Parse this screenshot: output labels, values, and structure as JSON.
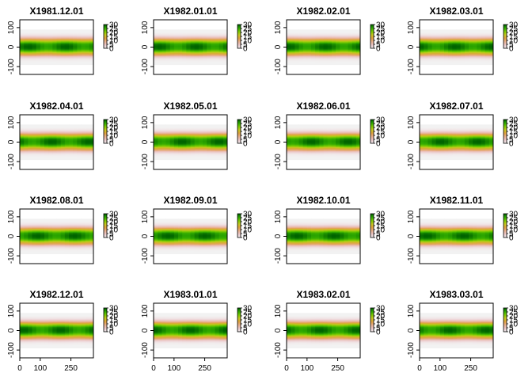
{
  "chart_data": {
    "type": "heatmap",
    "layout": {
      "rows": 4,
      "cols": 4
    },
    "panels": [
      {
        "title": "X1981.12.01"
      },
      {
        "title": "X1982.01.01"
      },
      {
        "title": "X1982.02.01"
      },
      {
        "title": "X1982.03.01"
      },
      {
        "title": "X1982.04.01"
      },
      {
        "title": "X1982.05.01"
      },
      {
        "title": "X1982.06.01"
      },
      {
        "title": "X1982.07.01"
      },
      {
        "title": "X1982.08.01"
      },
      {
        "title": "X1982.09.01"
      },
      {
        "title": "X1982.10.01"
      },
      {
        "title": "X1982.11.01"
      },
      {
        "title": "X1982.12.01"
      },
      {
        "title": "X1983.01.01"
      },
      {
        "title": "X1983.02.01"
      },
      {
        "title": "X1983.03.01"
      }
    ],
    "xlim": [
      0,
      360
    ],
    "ylim": [
      -140,
      140
    ],
    "x_ticks": [
      0,
      100,
      250
    ],
    "y_ticks": [
      -100,
      0,
      100
    ],
    "x_ticks_shown_on_bottom_row_only": true,
    "legend": {
      "ticks": [
        0,
        5,
        10,
        15,
        20,
        25,
        30
      ],
      "tick_labels": [
        "0",
        "5",
        "10",
        "15",
        "20",
        "25",
        "30"
      ],
      "range": [
        0,
        30
      ],
      "colors": [
        "#f2f2f2",
        "#ecc9cc",
        "#e8b090",
        "#e0a040",
        "#c8c820",
        "#7acc00",
        "#2ea800",
        "#006400"
      ]
    },
    "field": {
      "description_values": "values near 28-30 in the tropical band, decreasing poleward",
      "lat_profile": {
        "lat": [
          -90,
          -75,
          -60,
          -50,
          -40,
          -30,
          -20,
          -10,
          0,
          10,
          20,
          30,
          40,
          50,
          60,
          75,
          90
        ],
        "value": [
          0,
          0,
          1,
          4,
          10,
          16,
          22,
          27,
          28,
          28,
          26,
          20,
          13,
          6,
          2,
          0,
          0
        ]
      }
    }
  }
}
